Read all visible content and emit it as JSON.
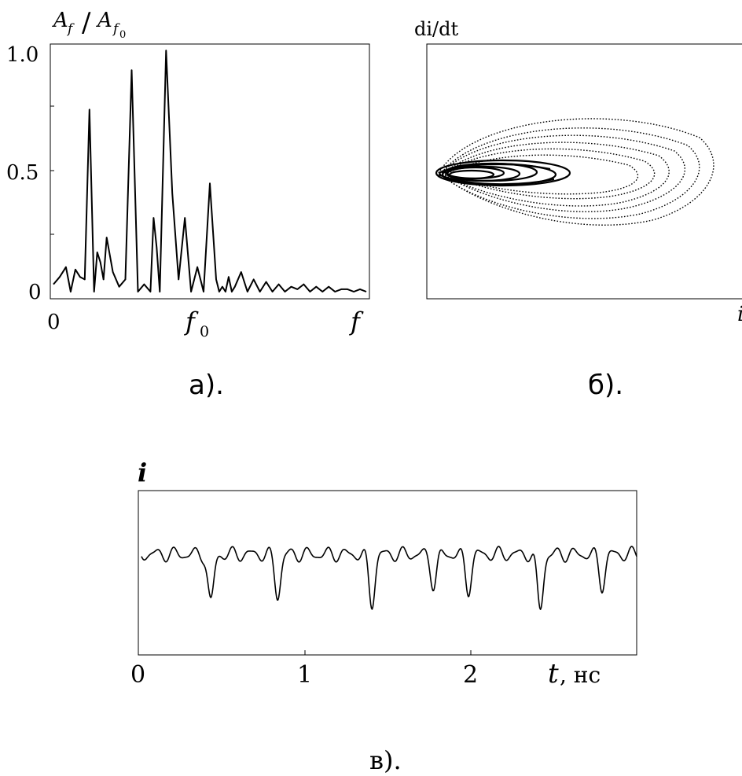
{
  "chart_data": [
    {
      "panel": "a",
      "type": "line",
      "ylabel": {
        "main": "A",
        "sub": "f",
        "sep": "/",
        "main2": "A",
        "sub2": "f",
        "sub2sub": "0"
      },
      "yticks": [
        "0",
        "0.5",
        "1.0"
      ],
      "xticks": {
        "start": "0",
        "mid_main": "f",
        "mid_sub": "0",
        "end": "f"
      },
      "ylim": [
        0,
        1.0
      ],
      "caption": "а).",
      "x": [
        0,
        0.02,
        0.04,
        0.055,
        0.07,
        0.085,
        0.1,
        0.115,
        0.13,
        0.14,
        0.15,
        0.16,
        0.17,
        0.19,
        0.21,
        0.23,
        0.25,
        0.27,
        0.29,
        0.31,
        0.32,
        0.33,
        0.34,
        0.36,
        0.38,
        0.4,
        0.42,
        0.44,
        0.46,
        0.48,
        0.5,
        0.52,
        0.53,
        0.54,
        0.55,
        0.56,
        0.57,
        0.58,
        0.6,
        0.62,
        0.64,
        0.66,
        0.68,
        0.7,
        0.72,
        0.74,
        0.76,
        0.78,
        0.8,
        0.82,
        0.84,
        0.86,
        0.88,
        0.9,
        0.92,
        0.94,
        0.96,
        0.98,
        1.0
      ],
      "values": [
        0.03,
        0.06,
        0.1,
        0.0,
        0.09,
        0.06,
        0.05,
        0.74,
        0.0,
        0.16,
        0.12,
        0.05,
        0.22,
        0.08,
        0.02,
        0.05,
        0.9,
        0.0,
        0.03,
        0.0,
        0.3,
        0.18,
        0.0,
        0.98,
        0.4,
        0.05,
        0.3,
        0.0,
        0.1,
        0.0,
        0.44,
        0.05,
        0.0,
        0.02,
        0.0,
        0.06,
        0.0,
        0.02,
        0.08,
        0.0,
        0.05,
        0.0,
        0.04,
        0.0,
        0.03,
        0.0,
        0.02,
        0.01,
        0.03,
        0.0,
        0.02,
        0.0,
        0.02,
        0.0,
        0.01,
        0.01,
        0.0,
        0.01,
        0.0
      ]
    },
    {
      "panel": "б",
      "type": "scatter",
      "ylabel": "di/dt",
      "xlabel": "i",
      "caption": "б)."
    },
    {
      "panel": "в",
      "type": "line",
      "ylabel": "i",
      "xlabel_main": "t",
      "xlabel_unit": ", нс",
      "xticks": [
        "0",
        "1",
        "2"
      ],
      "xlim": [
        0,
        3.0
      ],
      "caption": "в)."
    }
  ]
}
